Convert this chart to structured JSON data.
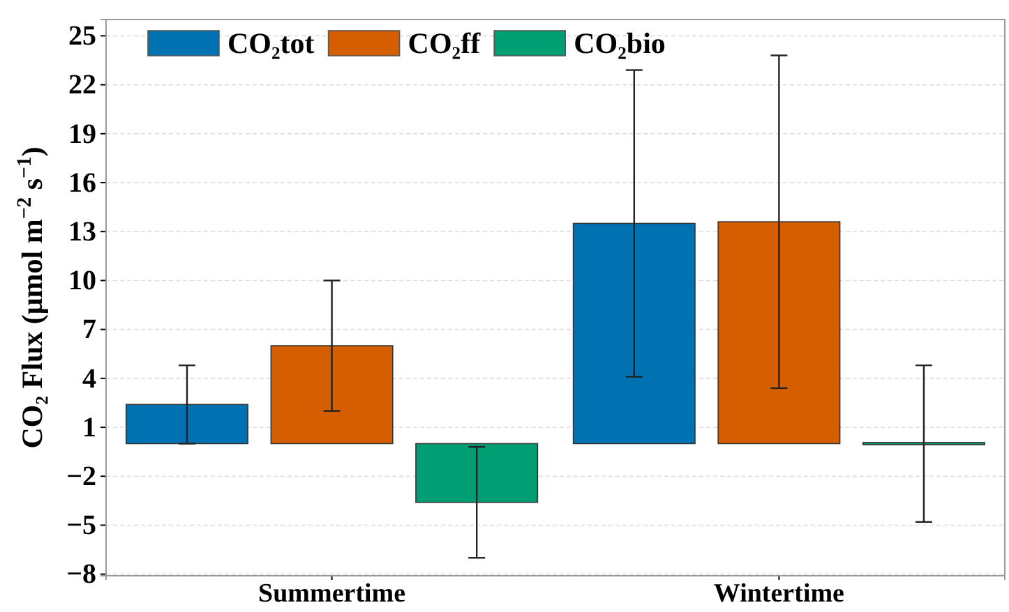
{
  "chart_data": {
    "type": "bar",
    "ylabel": "CO₂ Flux (μmol m$^{−2}$ s$^{−1}$)",
    "categories": [
      "Summertime",
      "Wintertime"
    ],
    "series": [
      {
        "name": "CO₂tot",
        "color": "#0072b2",
        "values": [
          2.4,
          13.5
        ],
        "errors": [
          2.4,
          9.4
        ]
      },
      {
        "name": "CO₂ff",
        "color": "#d55e00",
        "values": [
          6.0,
          13.6
        ],
        "errors": [
          4.0,
          10.2
        ]
      },
      {
        "name": "CO₂bio",
        "color": "#009e73",
        "values": [
          -3.6,
          0
        ],
        "errors": [
          3.4,
          4.8
        ]
      }
    ],
    "ylim": [
      -8.1,
      26
    ],
    "yticks": [
      {
        "value": -8,
        "label": "−8"
      },
      {
        "value": -5,
        "label": "−5"
      },
      {
        "value": -2,
        "label": "−2"
      },
      1,
      4,
      7,
      10,
      13,
      16,
      19,
      22,
      25
    ],
    "grid": "y",
    "legend": "top left"
  }
}
